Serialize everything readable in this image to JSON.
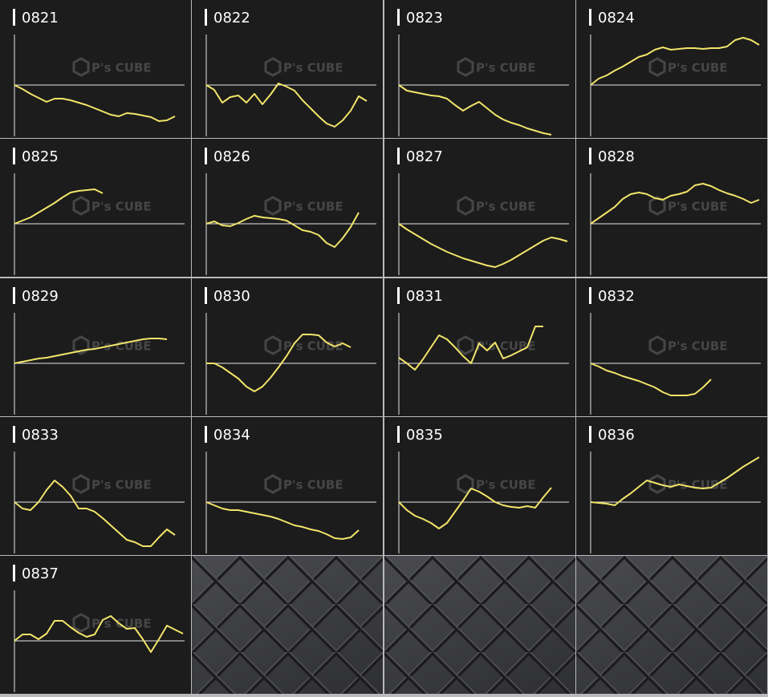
{
  "watermark": "P's CUBE",
  "chart_data": [
    {
      "type": "line",
      "title": "0821",
      "color": "#f2e46a",
      "xlim": [
        0,
        21
      ],
      "ylim": [
        -64,
        63
      ],
      "values": [
        0,
        -5,
        -11,
        -16,
        -21,
        -17,
        -17,
        -19,
        -22,
        -25,
        -29,
        -33,
        -37,
        -39,
        -35,
        -36,
        -38,
        -40,
        -45,
        -44,
        -39
      ]
    },
    {
      "type": "line",
      "title": "0822",
      "color": "#f2e46a",
      "xlim": [
        0,
        21
      ],
      "ylim": [
        -64,
        63
      ],
      "values": [
        0,
        -6,
        -22,
        -15,
        -13,
        -22,
        -11,
        -24,
        -12,
        2,
        -2,
        -7,
        -19,
        -29,
        -39,
        -48,
        -52,
        -44,
        -32,
        -14,
        -20
      ]
    },
    {
      "type": "line",
      "title": "0823",
      "color": "#f2e46a",
      "xlim": [
        0,
        21
      ],
      "ylim": [
        -64,
        63
      ],
      "values": [
        0,
        -7,
        -9,
        -11,
        -13,
        -14,
        -17,
        -25,
        -32,
        -26,
        -21,
        -29,
        -37,
        -43,
        -47,
        -50,
        -54,
        -57,
        -60,
        -62
      ]
    },
    {
      "type": "line",
      "title": "0824",
      "color": "#f2e46a",
      "xlim": [
        0,
        21
      ],
      "ylim": [
        -64,
        63
      ],
      "values": [
        0,
        8,
        12,
        18,
        23,
        29,
        35,
        38,
        44,
        47,
        44,
        45,
        46,
        46,
        45,
        46,
        46,
        48,
        56,
        59,
        56,
        50
      ]
    },
    {
      "type": "line",
      "title": "0825",
      "color": "#f2e46a",
      "xlim": [
        0,
        21
      ],
      "ylim": [
        -64,
        63
      ],
      "values": [
        0,
        4,
        8,
        14,
        20,
        26,
        33,
        39,
        41,
        42,
        43,
        38
      ]
    },
    {
      "type": "line",
      "title": "0826",
      "color": "#f2e46a",
      "xlim": [
        0,
        21
      ],
      "ylim": [
        -64,
        63
      ],
      "values": [
        0,
        3,
        -2,
        -3,
        1,
        6,
        10,
        8,
        7,
        6,
        4,
        -2,
        -8,
        -10,
        -14,
        -24,
        -29,
        -18,
        -4,
        14
      ]
    },
    {
      "type": "line",
      "title": "0827",
      "color": "#f2e46a",
      "xlim": [
        0,
        21
      ],
      "ylim": [
        -64,
        63
      ],
      "values": [
        0,
        -7,
        -13,
        -19,
        -25,
        -30,
        -35,
        -39,
        -43,
        -46,
        -49,
        -52,
        -54,
        -50,
        -45,
        -39,
        -33,
        -27,
        -21,
        -17,
        -19,
        -22
      ]
    },
    {
      "type": "line",
      "title": "0828",
      "color": "#f2e46a",
      "xlim": [
        0,
        21
      ],
      "ylim": [
        -64,
        63
      ],
      "values": [
        0,
        7,
        14,
        21,
        31,
        37,
        39,
        37,
        32,
        30,
        35,
        37,
        40,
        48,
        50,
        47,
        42,
        38,
        35,
        31,
        26,
        30
      ]
    },
    {
      "type": "line",
      "title": "0829",
      "color": "#f2e46a",
      "xlim": [
        0,
        21
      ],
      "ylim": [
        -64,
        63
      ],
      "values": [
        0,
        2,
        4,
        6,
        7,
        9,
        11,
        13,
        15,
        17,
        18,
        20,
        22,
        24,
        26,
        28,
        30,
        31,
        31,
        30
      ]
    },
    {
      "type": "line",
      "title": "0830",
      "color": "#f2e46a",
      "xlim": [
        0,
        21
      ],
      "ylim": [
        -64,
        63
      ],
      "values": [
        0,
        0,
        -5,
        -12,
        -19,
        -29,
        -35,
        -29,
        -18,
        -5,
        9,
        25,
        36,
        36,
        35,
        26,
        21,
        25,
        20
      ]
    },
    {
      "type": "line",
      "title": "0831",
      "color": "#f2e46a",
      "xlim": [
        0,
        21
      ],
      "ylim": [
        -64,
        63
      ],
      "values": [
        7,
        0,
        -8,
        5,
        20,
        35,
        30,
        20,
        9,
        0,
        25,
        16,
        26,
        6,
        10,
        15,
        20,
        46,
        46
      ]
    },
    {
      "type": "line",
      "title": "0832",
      "color": "#f2e46a",
      "xlim": [
        0,
        21
      ],
      "ylim": [
        -64,
        63
      ],
      "values": [
        0,
        -4,
        -9,
        -12,
        -16,
        -19,
        -22,
        -26,
        -30,
        -36,
        -40,
        -40,
        -40,
        -38,
        -30,
        -20
      ]
    },
    {
      "type": "line",
      "title": "0833",
      "color": "#f2e46a",
      "xlim": [
        0,
        21
      ],
      "ylim": [
        -64,
        63
      ],
      "values": [
        0,
        -8,
        -10,
        0,
        15,
        27,
        19,
        8,
        -8,
        -8,
        -12,
        -20,
        -29,
        -38,
        -47,
        -50,
        -55,
        -55,
        -44,
        -34,
        -41
      ]
    },
    {
      "type": "line",
      "title": "0834",
      "color": "#f2e46a",
      "xlim": [
        0,
        21
      ],
      "ylim": [
        -64,
        63
      ],
      "values": [
        0,
        -4,
        -8,
        -10,
        -10,
        -12,
        -14,
        -16,
        -18,
        -21,
        -25,
        -29,
        -31,
        -34,
        -36,
        -40,
        -45,
        -46,
        -44,
        -35
      ]
    },
    {
      "type": "line",
      "title": "0835",
      "color": "#f2e46a",
      "xlim": [
        0,
        21
      ],
      "ylim": [
        -64,
        63
      ],
      "values": [
        0,
        -10,
        -17,
        -21,
        -26,
        -33,
        -26,
        -12,
        2,
        17,
        13,
        7,
        0,
        -4,
        -6,
        -7,
        -5,
        -7,
        6,
        18
      ]
    },
    {
      "type": "line",
      "title": "0836",
      "color": "#f2e46a",
      "xlim": [
        0,
        21
      ],
      "ylim": [
        -64,
        63
      ],
      "values": [
        0,
        -1,
        -2,
        -4,
        4,
        11,
        19,
        27,
        24,
        21,
        19,
        22,
        20,
        18,
        17,
        18,
        24,
        30,
        37,
        44,
        50,
        56
      ]
    },
    {
      "type": "line",
      "title": "0837",
      "color": "#f2e46a",
      "xlim": [
        0,
        21
      ],
      "ylim": [
        -64,
        63
      ],
      "values": [
        0,
        8,
        8,
        2,
        9,
        25,
        25,
        17,
        10,
        5,
        8,
        26,
        31,
        22,
        15,
        16,
        2,
        -14,
        2,
        19,
        14,
        9
      ]
    }
  ]
}
